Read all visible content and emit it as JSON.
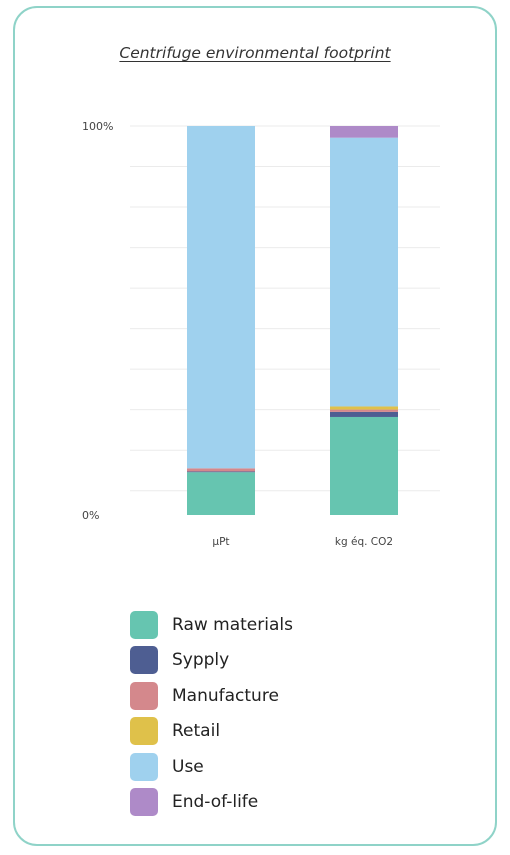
{
  "chart_data": {
    "type": "bar",
    "stacked": true,
    "title": "Centrifuge environmental footprint",
    "categories": [
      "µPt",
      "kg éq. CO2"
    ],
    "y_tick_labels": [
      "0%",
      "100%"
    ],
    "ylim": [
      0,
      100
    ],
    "grid": true,
    "legend_position": "bottom",
    "series": [
      {
        "name": "Raw materials",
        "color": "#66c5b0",
        "values": [
          11.0,
          25.2
        ]
      },
      {
        "name": "Sypply",
        "color": "#4e5e92",
        "values": [
          0.2,
          1.3
        ]
      },
      {
        "name": "Manufacture",
        "color": "#d4888c",
        "values": [
          0.8,
          0.6
        ]
      },
      {
        "name": "Retail",
        "color": "#dfc14a",
        "values": [
          0.0,
          0.8
        ]
      },
      {
        "name": "Use",
        "color": "#9fd1ee",
        "values": [
          88.0,
          69.1
        ]
      },
      {
        "name": "End-of-life",
        "color": "#ae8ac8",
        "values": [
          0.0,
          3.0
        ]
      }
    ]
  }
}
